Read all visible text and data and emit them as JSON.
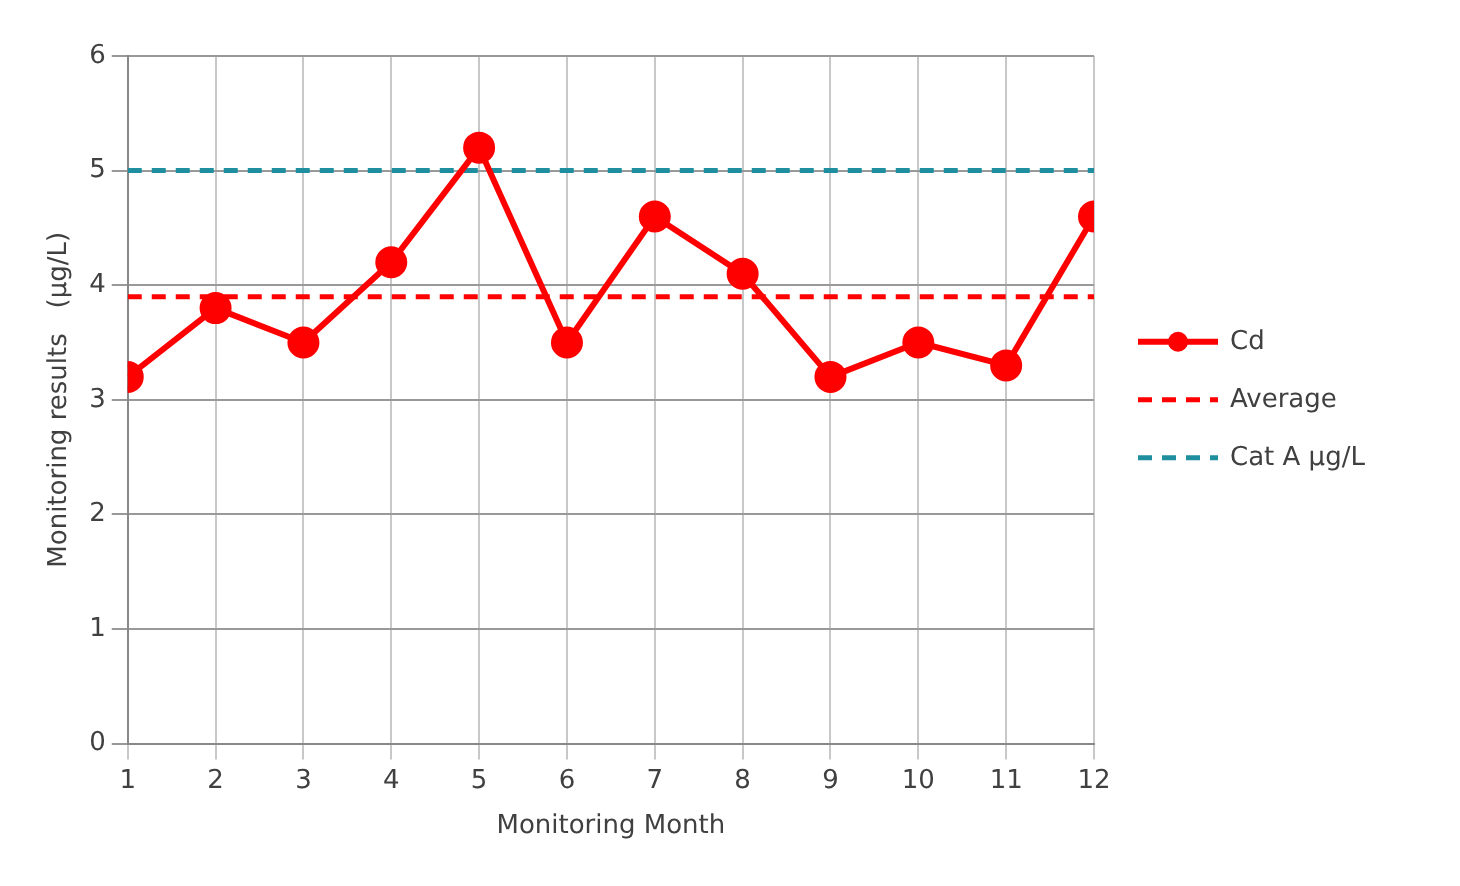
{
  "chart_data": {
    "type": "line",
    "xlabel": "Monitoring Month",
    "ylabel": "Monitoring results   (μg/L)",
    "x": [
      1,
      2,
      3,
      4,
      5,
      6,
      7,
      8,
      9,
      10,
      11,
      12
    ],
    "xlim": [
      1,
      12
    ],
    "xticks": [
      1,
      2,
      3,
      4,
      5,
      6,
      7,
      8,
      9,
      10,
      11,
      12
    ],
    "series": [
      {
        "name": "Cd",
        "color": "#ff0000",
        "values": [
          3.2,
          3.8,
          3.5,
          4.2,
          5.2,
          3.5,
          4.6,
          4.1,
          3.2,
          3.5,
          3.3,
          4.6
        ]
      }
    ],
    "ref_lines": [
      {
        "axis": "y",
        "value": 3.9,
        "label": "Average",
        "color": "#ff0000",
        "line_style": "dashed"
      },
      {
        "axis": "y",
        "value": 5,
        "label": "Cat A μg/L",
        "color": "#1f8fa0",
        "line_style": "dashed"
      }
    ],
    "ylim": [
      0,
      6
    ],
    "yticks": [
      0,
      1,
      2,
      3,
      4,
      5,
      6
    ],
    "grid": true,
    "legend": "right",
    "marker": "circle",
    "line_style": "solid"
  }
}
